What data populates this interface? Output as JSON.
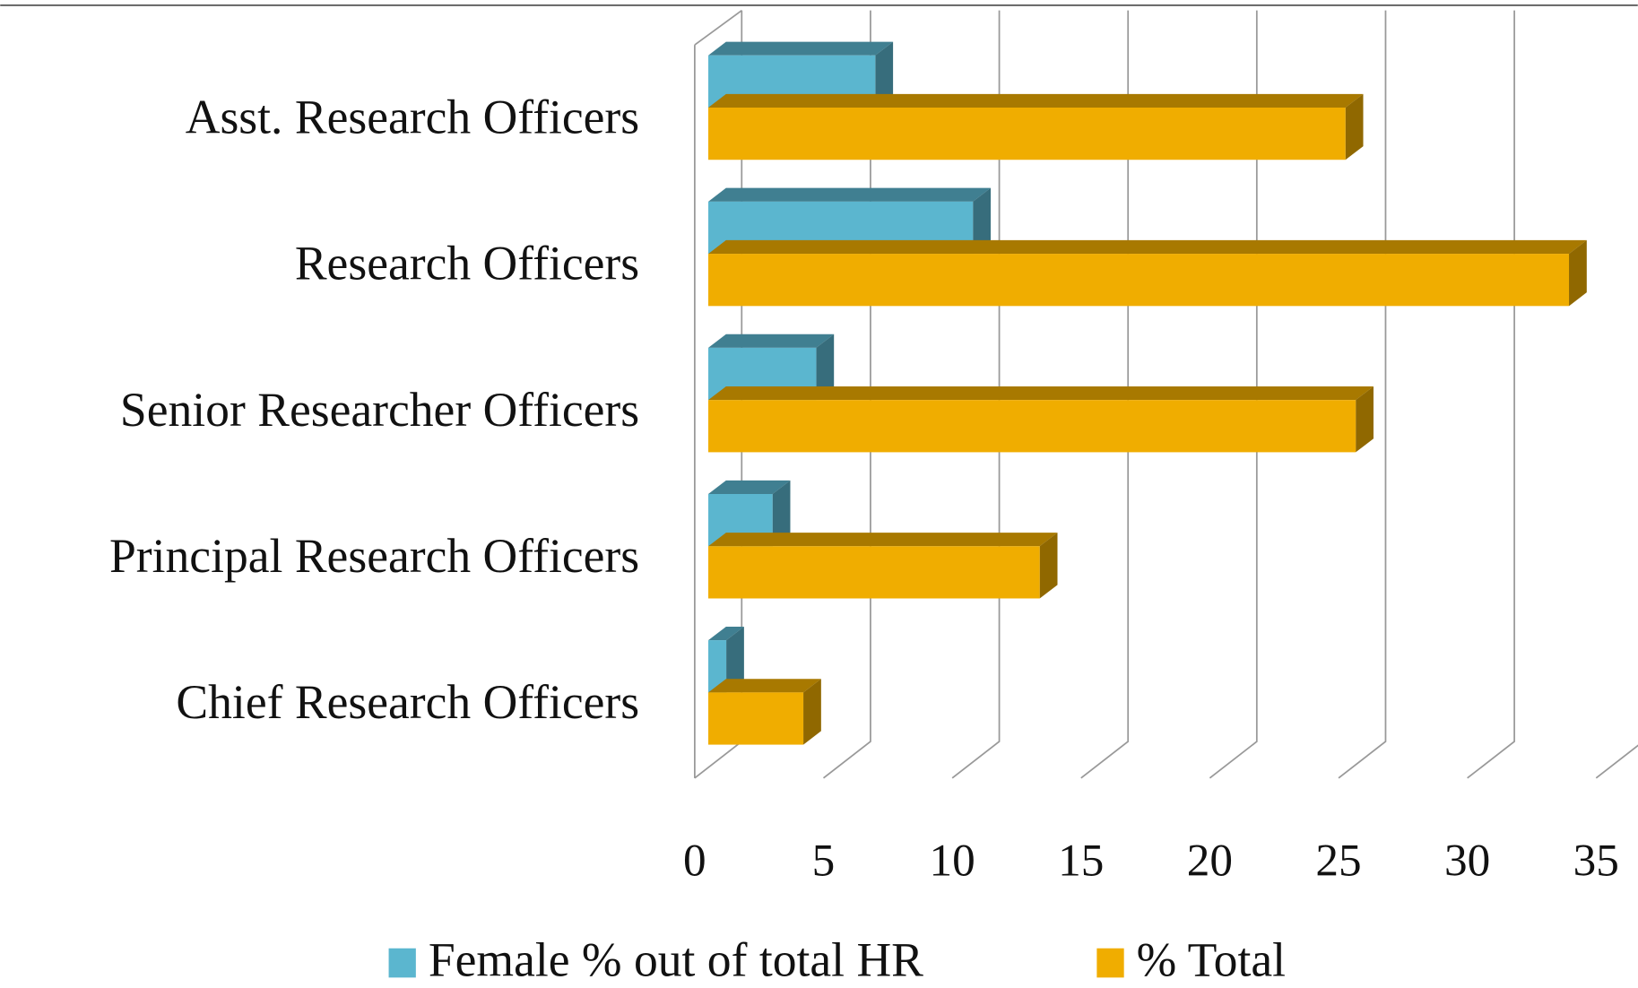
{
  "chart_data": {
    "type": "bar3d_horizontal",
    "categories": [
      "Asst. Research Officers",
      "Research Officers",
      "Senior Researcher Officers",
      "Principal Research Officers",
      "Chief Research Officers"
    ],
    "series": [
      {
        "name": "Female % out of total HR",
        "color": "#5bb6cf",
        "values": [
          6.5,
          10.3,
          4.2,
          2.5,
          0.7
        ]
      },
      {
        "name": "% Total",
        "color": "#f0ad00",
        "values": [
          24.8,
          33.5,
          25.2,
          12.9,
          3.7
        ]
      }
    ],
    "xlim": [
      0,
      35
    ],
    "xticks": [
      0,
      5,
      10,
      15,
      20,
      25,
      30,
      35
    ],
    "grid": true,
    "legend": "bottom"
  }
}
